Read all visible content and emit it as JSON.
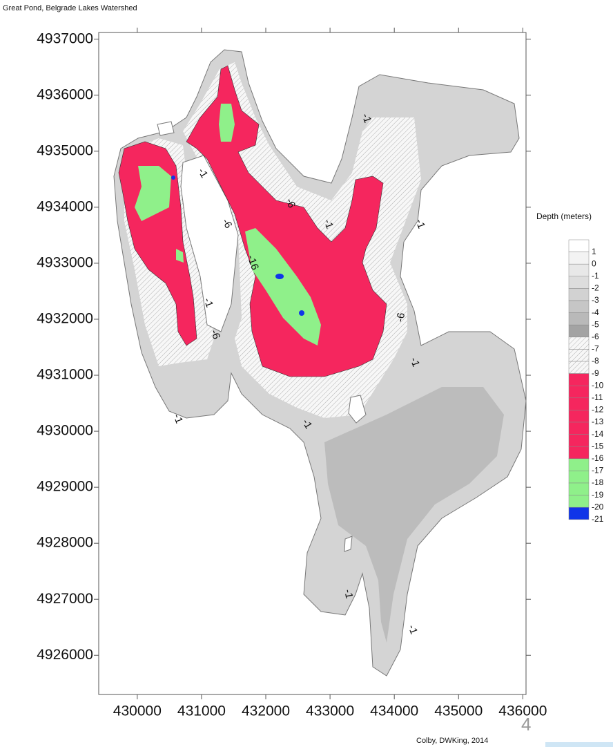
{
  "map": {
    "title": "Great Pond, Belgrade Lakes Watershed",
    "xlim": [
      429400,
      436050
    ],
    "ylim": [
      4925300,
      4937120
    ],
    "xticks": [
      430000,
      431000,
      432000,
      433000,
      434000,
      435000,
      436000
    ],
    "yticks": [
      4926000,
      4927000,
      4928000,
      4929000,
      4930000,
      4931000,
      4932000,
      4933000,
      4934000,
      4935000,
      4936000,
      4937000
    ],
    "contour_labels": [
      -1,
      -1,
      -6,
      -1,
      -6,
      -1,
      -16,
      -1,
      -6,
      -6,
      -1,
      -1,
      -1,
      -1,
      -1
    ],
    "legend": {
      "title": "Depth (meters)",
      "levels": [
        1,
        0,
        -1,
        -2,
        -3,
        -4,
        -5,
        -6,
        -7,
        -8,
        -9,
        -10,
        -11,
        -12,
        -13,
        -14,
        -15,
        -16,
        -17,
        -18,
        -19,
        -20,
        -21
      ],
      "colors": [
        "#ffffff",
        "#f3f3f3",
        "#e8e8e8",
        "#dddddd",
        "#d2d2d2",
        "#c6c6c6",
        "#b9b9b9",
        "#a3a3a3",
        "hatch",
        "hatch",
        "hatch",
        "#f5265e",
        "#f5265e",
        "#f5265e",
        "#f5265e",
        "#f5265e",
        "#f5265e",
        "#f5265e",
        "#8ff08a",
        "#8ff08a",
        "#8ff08a",
        "#8ff08a",
        "#1035e8"
      ]
    },
    "credit": "Colby, DWKing, 2014",
    "page_number": "4"
  }
}
